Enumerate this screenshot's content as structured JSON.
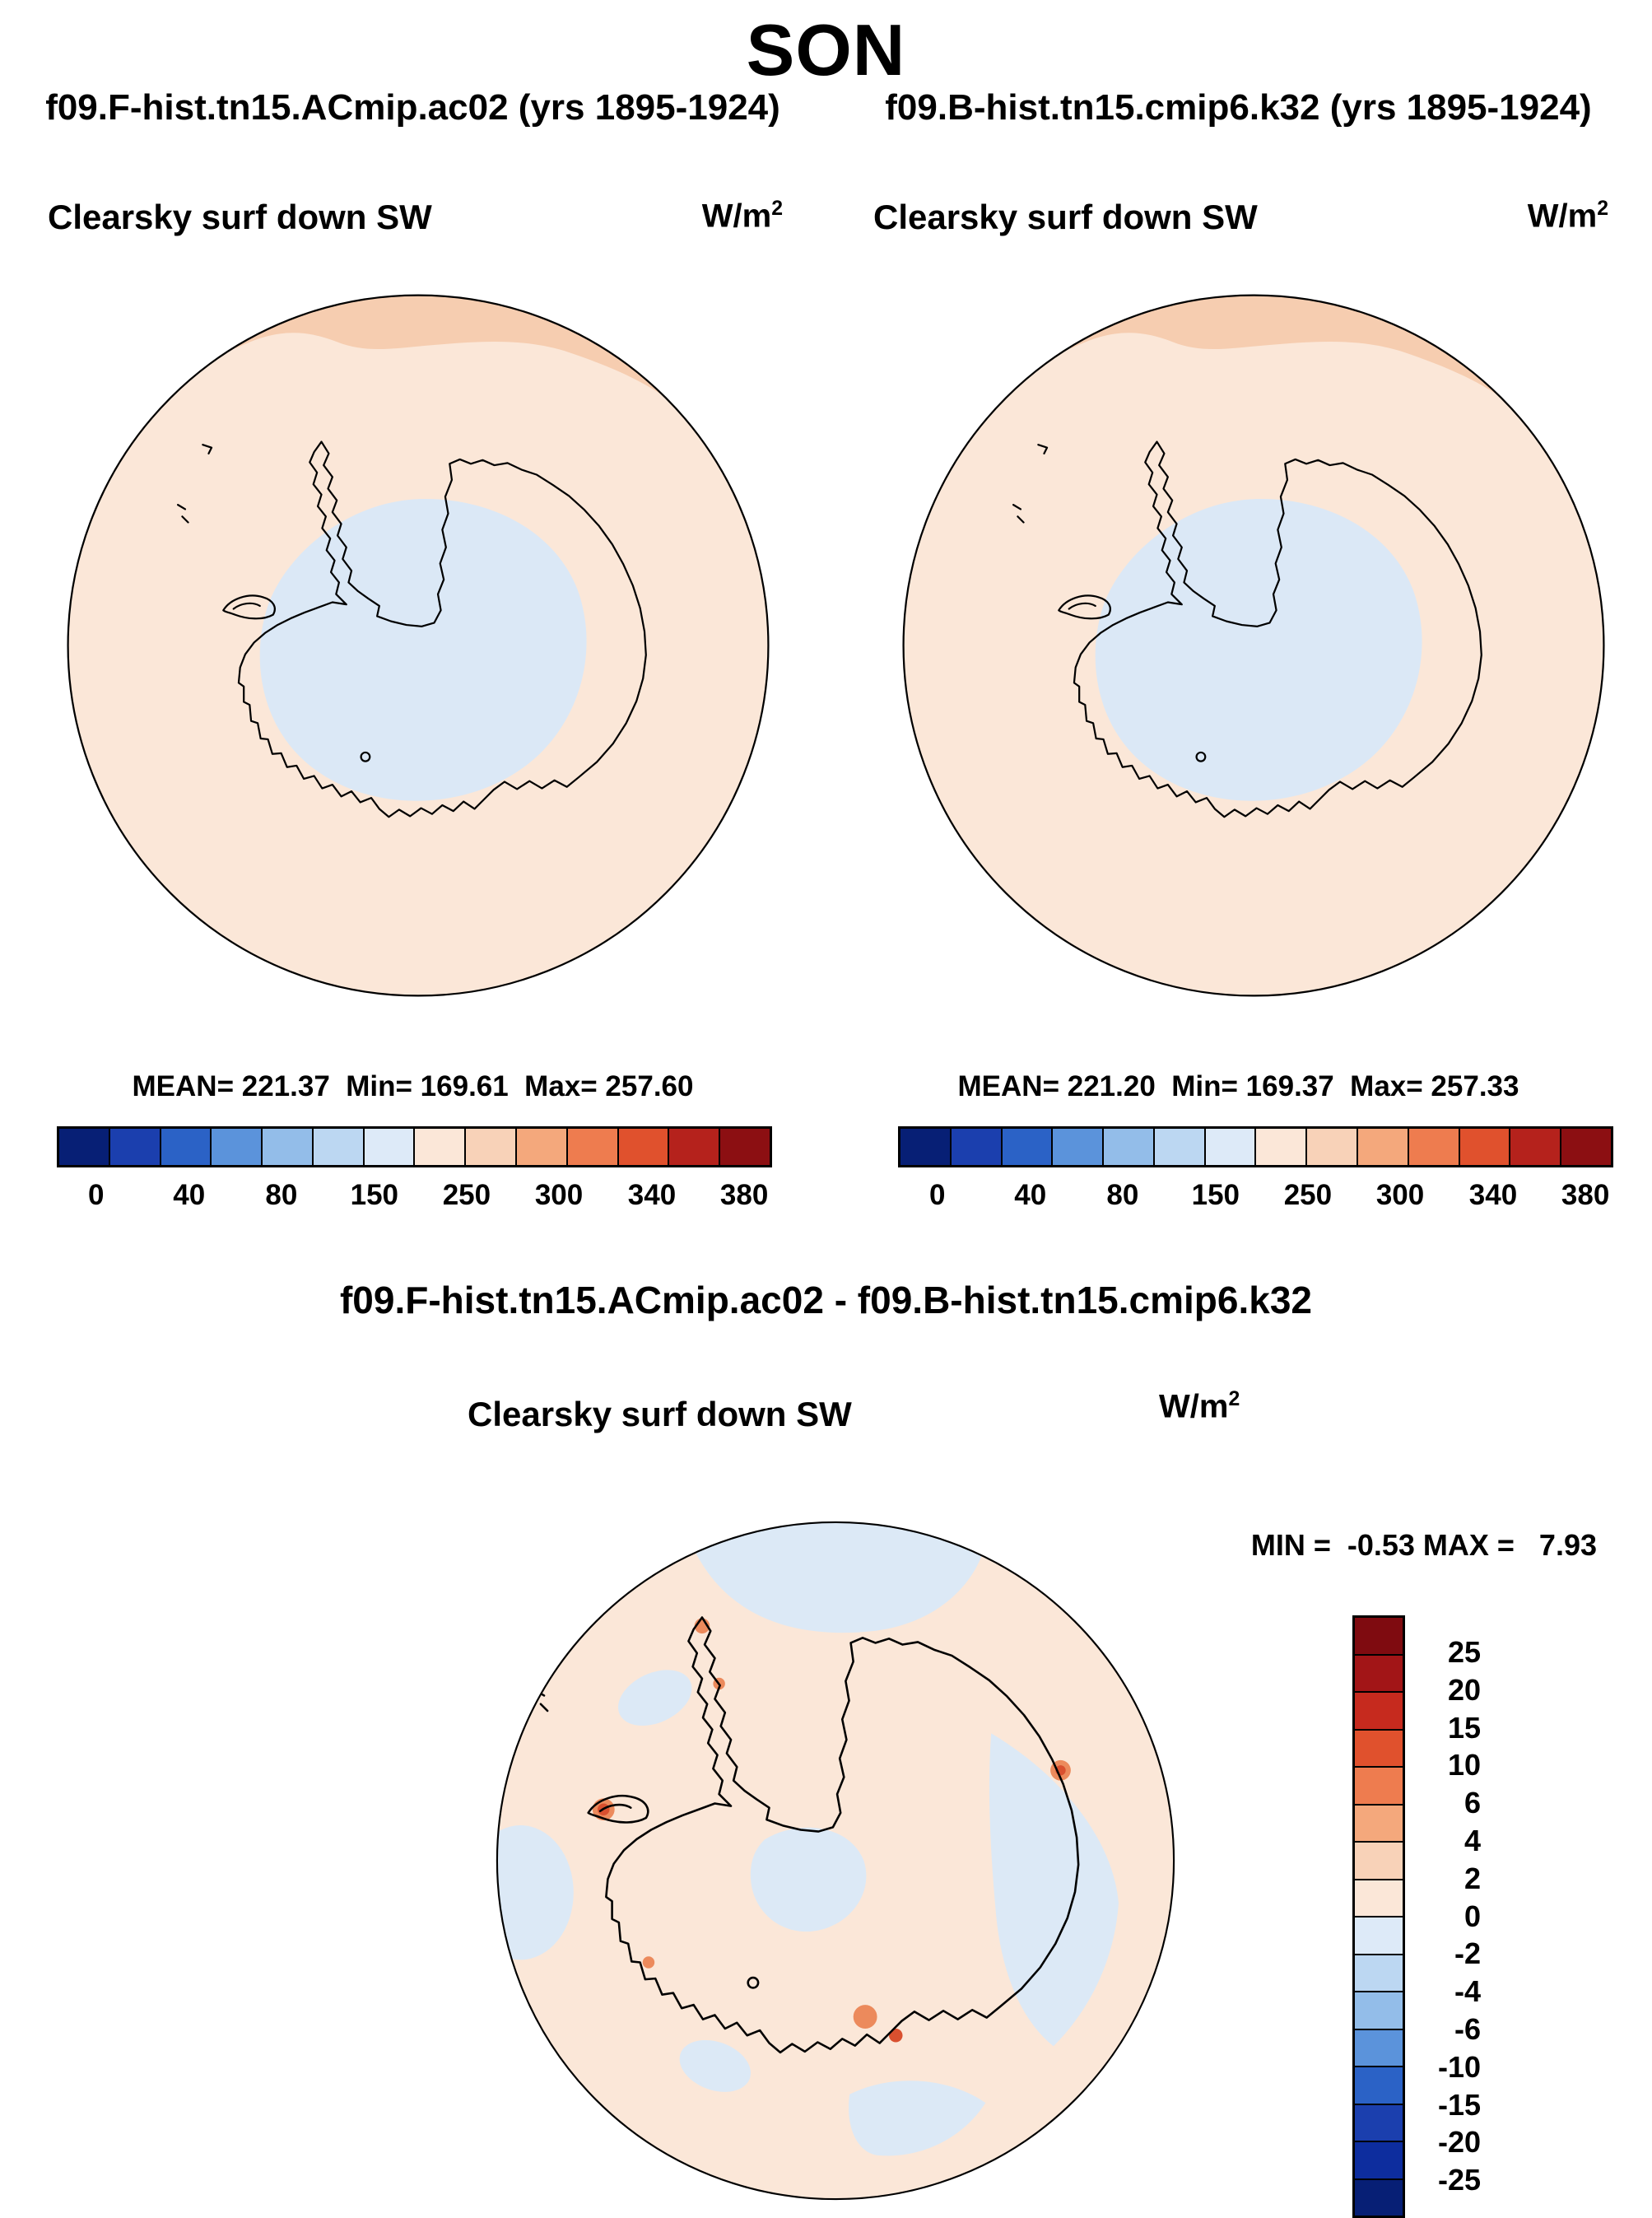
{
  "title": "SON",
  "top_panels": [
    {
      "header": "f09.F-hist.tn15.ACmip.ac02 (yrs 1895-1924)",
      "field_label": "Clearsky surf down SW",
      "units_base": "W/m",
      "units_exp": "2",
      "stats": "MEAN= 221.37  Min= 169.61  Max= 257.60"
    },
    {
      "header": "f09.B-hist.tn15.cmip6.k32 (yrs 1895-1924)",
      "field_label": "Clearsky surf down SW",
      "units_base": "W/m",
      "units_exp": "2",
      "stats": "MEAN= 221.20  Min= 169.37  Max= 257.33"
    }
  ],
  "top_colorbar": {
    "labels": [
      "0",
      "40",
      "80",
      "150",
      "250",
      "300",
      "340",
      "380"
    ],
    "colors": [
      "#071f75",
      "#1b3fae",
      "#2b62c6",
      "#5b93db",
      "#93bde9",
      "#bcd7f2",
      "#ddeaf8",
      "#fbe7d8",
      "#f8d2b8",
      "#f4a87c",
      "#ee7c4f",
      "#e0512d",
      "#b5221c",
      "#8c0f12"
    ]
  },
  "diff_panel": {
    "header": "f09.F-hist.tn15.ACmip.ac02 - f09.B-hist.tn15.cmip6.k32",
    "field_label": "Clearsky surf down SW",
    "units_base": "W/m",
    "units_exp": "2",
    "minmax": "MIN =  -0.53 MAX =   7.93"
  },
  "diff_colorbar": {
    "labels": [
      "25",
      "20",
      "15",
      "10",
      "6",
      "4",
      "2",
      "0",
      "-2",
      "-4",
      "-6",
      "-10",
      "-15",
      "-20",
      "-25"
    ],
    "colors": [
      "#7f0b10",
      "#a21517",
      "#c62a1e",
      "#e0512d",
      "#ee7c4f",
      "#f4a87c",
      "#f8d2b8",
      "#fbe7d8",
      "#ddeaf8",
      "#bcd7f2",
      "#93bde9",
      "#5b93db",
      "#2b62c6",
      "#1b3fae",
      "#0d2d9e",
      "#071f75"
    ]
  },
  "colors": {
    "map_background": "#fbe7d8",
    "high_band": "#f6cdb0",
    "interior_low": "#dbe8f6",
    "diff_negative_patch": "#dce9f6",
    "diff_positive_spot": "#ec8a5c",
    "diff_positive_strong": "#d9502f",
    "coastline": "#000000"
  },
  "chart_data": [
    {
      "type": "heatmap",
      "subtype": "south-polar-stereographic-filled-contour-map",
      "season": "SON",
      "title": "f09.F-hist.tn15.ACmip.ac02 (yrs 1895-1924)",
      "field": "Clearsky surf down SW",
      "units": "W/m^2",
      "region": "Antarctica / Southern Ocean",
      "stats": {
        "mean": 221.37,
        "min": 169.61,
        "max": 257.6
      },
      "contour_levels_labeled": [
        0,
        40,
        80,
        150,
        250,
        300,
        340,
        380
      ],
      "legend_position": "bottom",
      "description": "Ocean and coastal values ~220-260 W/m2 (pale orange); Antarctic interior plateau below ~150 W/m2 (light blue); values above ~260 W/m2 (darker orange band) near the northern edge of the map"
    },
    {
      "type": "heatmap",
      "subtype": "south-polar-stereographic-filled-contour-map",
      "season": "SON",
      "title": "f09.B-hist.tn15.cmip6.k32 (yrs 1895-1924)",
      "field": "Clearsky surf down SW",
      "units": "W/m^2",
      "region": "Antarctica / Southern Ocean",
      "stats": {
        "mean": 221.2,
        "min": 169.37,
        "max": 257.33
      },
      "contour_levels_labeled": [
        0,
        40,
        80,
        150,
        250,
        300,
        340,
        380
      ],
      "legend_position": "bottom",
      "description": "Nearly identical pattern to the first panel"
    },
    {
      "type": "heatmap",
      "subtype": "south-polar-stereographic-filled-contour-difference-map",
      "season": "SON",
      "title": "f09.F-hist.tn15.ACmip.ac02 - f09.B-hist.tn15.cmip6.k32",
      "field": "Clearsky surf down SW",
      "units": "W/m^2",
      "stats": {
        "min": -0.53,
        "max": 7.93
      },
      "contour_levels_labeled": [
        -25,
        -20,
        -15,
        -10,
        -6,
        -4,
        -2,
        0,
        2,
        4,
        6,
        10,
        15,
        20,
        25
      ],
      "legend_position": "right",
      "description": "Differences mostly between -2 and +2 W/m2; small positive spots up to ~8 W/m2 near the Antarctic Peninsula and along the coast; weak negative patches over parts of the ocean and interior"
    }
  ]
}
